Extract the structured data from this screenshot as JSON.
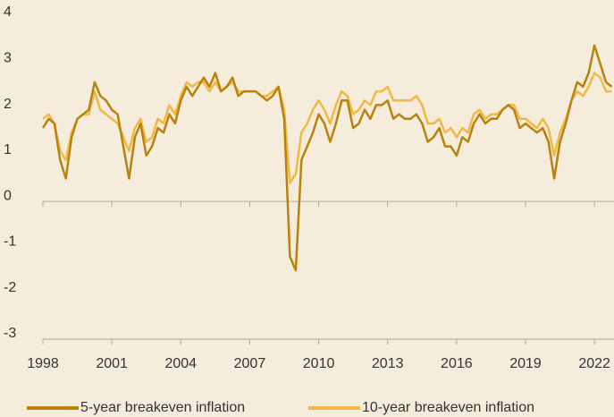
{
  "chart_data": {
    "type": "line",
    "x": [
      1998,
      1998.25,
      1998.5,
      1998.75,
      1999,
      1999.25,
      1999.5,
      1999.75,
      2000,
      2000.25,
      2000.5,
      2000.75,
      2001,
      2001.25,
      2001.5,
      2001.75,
      2002,
      2002.25,
      2002.5,
      2002.75,
      2003,
      2003.25,
      2003.5,
      2003.75,
      2004,
      2004.25,
      2004.5,
      2004.75,
      2005,
      2005.25,
      2005.5,
      2005.75,
      2006,
      2006.25,
      2006.5,
      2006.75,
      2007,
      2007.25,
      2007.5,
      2007.75,
      2008,
      2008.25,
      2008.5,
      2008.75,
      2009,
      2009.25,
      2009.5,
      2009.75,
      2010,
      2010.25,
      2010.5,
      2010.75,
      2011,
      2011.25,
      2011.5,
      2011.75,
      2012,
      2012.25,
      2012.5,
      2012.75,
      2013,
      2013.25,
      2013.5,
      2013.75,
      2014,
      2014.25,
      2014.5,
      2014.75,
      2015,
      2015.25,
      2015.5,
      2015.75,
      2016,
      2016.25,
      2016.5,
      2016.75,
      2017,
      2017.25,
      2017.5,
      2017.75,
      2018,
      2018.25,
      2018.5,
      2018.75,
      2019,
      2019.25,
      2019.5,
      2019.75,
      2020,
      2020.25,
      2020.5,
      2020.75,
      2021,
      2021.25,
      2021.5,
      2021.75,
      2022,
      2022.25,
      2022.5,
      2022.75
    ],
    "series": [
      {
        "name": "5-year breakeven inflation",
        "color": "#b9820f",
        "values": [
          1.6,
          1.8,
          1.7,
          0.9,
          0.5,
          1.4,
          1.8,
          1.9,
          2.0,
          2.6,
          2.3,
          2.2,
          2.0,
          1.9,
          1.2,
          0.5,
          1.4,
          1.7,
          1.0,
          1.2,
          1.6,
          1.5,
          1.9,
          1.7,
          2.2,
          2.5,
          2.3,
          2.5,
          2.7,
          2.5,
          2.8,
          2.4,
          2.5,
          2.7,
          2.3,
          2.4,
          2.4,
          2.4,
          2.3,
          2.2,
          2.3,
          2.5,
          1.8,
          -1.2,
          -1.5,
          0.9,
          1.2,
          1.5,
          1.9,
          1.7,
          1.3,
          1.7,
          2.2,
          2.2,
          1.6,
          1.7,
          2.0,
          1.8,
          2.1,
          2.1,
          2.2,
          1.8,
          1.9,
          1.8,
          1.8,
          1.9,
          1.7,
          1.3,
          1.4,
          1.6,
          1.2,
          1.2,
          1.0,
          1.4,
          1.3,
          1.7,
          1.9,
          1.7,
          1.8,
          1.8,
          2.0,
          2.1,
          2.0,
          1.6,
          1.7,
          1.6,
          1.5,
          1.6,
          1.3,
          0.5,
          1.3,
          1.7,
          2.2,
          2.6,
          2.5,
          2.8,
          3.4,
          3.0,
          2.6,
          2.5
        ]
      },
      {
        "name": "10-year breakeven inflation",
        "color": "#f0b945",
        "values": [
          1.8,
          1.9,
          1.7,
          1.1,
          0.9,
          1.5,
          1.8,
          1.9,
          1.9,
          2.4,
          2.0,
          1.9,
          1.8,
          1.7,
          1.4,
          1.1,
          1.6,
          1.8,
          1.3,
          1.4,
          1.8,
          1.7,
          2.1,
          1.9,
          2.3,
          2.6,
          2.5,
          2.6,
          2.6,
          2.4,
          2.6,
          2.4,
          2.5,
          2.6,
          2.4,
          2.4,
          2.4,
          2.4,
          2.3,
          2.3,
          2.4,
          2.5,
          2.0,
          0.4,
          0.6,
          1.5,
          1.7,
          2.0,
          2.2,
          2.0,
          1.7,
          2.1,
          2.4,
          2.3,
          1.9,
          2.0,
          2.2,
          2.1,
          2.4,
          2.4,
          2.5,
          2.2,
          2.2,
          2.2,
          2.2,
          2.3,
          2.1,
          1.7,
          1.7,
          1.8,
          1.5,
          1.6,
          1.4,
          1.6,
          1.5,
          1.9,
          2.0,
          1.8,
          1.9,
          1.9,
          2.0,
          2.1,
          2.1,
          1.8,
          1.8,
          1.7,
          1.6,
          1.8,
          1.6,
          1.0,
          1.5,
          1.8,
          2.2,
          2.4,
          2.3,
          2.5,
          2.8,
          2.7,
          2.4,
          2.4
        ]
      }
    ],
    "xlim": [
      1998,
      2022.85
    ],
    "xticks": [
      1998,
      2001,
      2004,
      2007,
      2010,
      2013,
      2016,
      2019,
      2022
    ],
    "ylim": [
      -3,
      4
    ],
    "yticks": [
      -3,
      -2,
      -1,
      0,
      1,
      2,
      3,
      4
    ]
  }
}
